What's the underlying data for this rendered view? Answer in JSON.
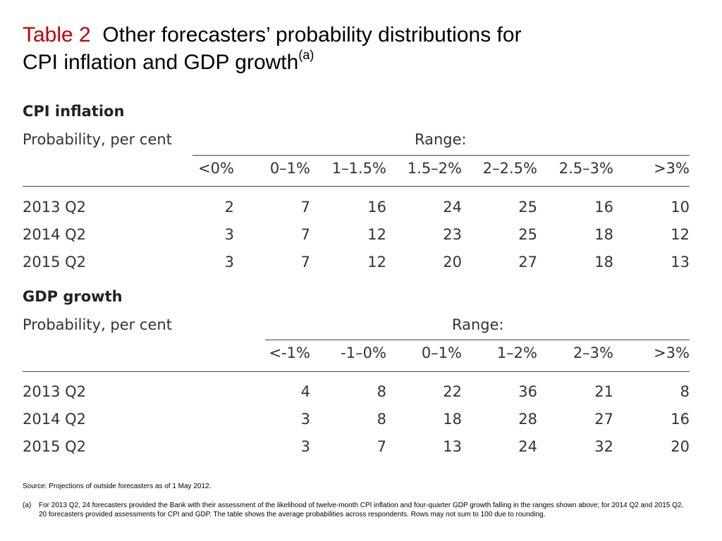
{
  "title": {
    "label": "Table 2",
    "line1": "Other forecasters’ probability distributions for",
    "line2": "CPI inflation and GDP growth",
    "superscript": "(a)"
  },
  "cpi": {
    "section": "CPI inflation",
    "subtitle": "Probability, per cent",
    "range_label": "Range:",
    "columns": [
      "<0%",
      "0–1%",
      "1–1.5%",
      "1.5–2%",
      "2–2.5%",
      "2.5–3%",
      ">3%"
    ],
    "rows": [
      {
        "label": "2013 Q2",
        "values": [
          "2",
          "7",
          "16",
          "24",
          "25",
          "16",
          "10"
        ]
      },
      {
        "label": "2014 Q2",
        "values": [
          "3",
          "7",
          "12",
          "23",
          "25",
          "18",
          "12"
        ]
      },
      {
        "label": "2015 Q2",
        "values": [
          "3",
          "7",
          "12",
          "20",
          "27",
          "18",
          "13"
        ]
      }
    ]
  },
  "gdp": {
    "section": "GDP growth",
    "subtitle": "Probability, per cent",
    "range_label": "Range:",
    "columns": [
      "<-1%",
      "-1–0%",
      "0–1%",
      "1–2%",
      "2–3%",
      ">3%"
    ],
    "rows": [
      {
        "label": "2013 Q2",
        "values": [
          "4",
          "8",
          "22",
          "36",
          "21",
          "8"
        ]
      },
      {
        "label": "2014 Q2",
        "values": [
          "3",
          "8",
          "18",
          "28",
          "27",
          "16"
        ]
      },
      {
        "label": "2015 Q2",
        "values": [
          "3",
          "7",
          "13",
          "24",
          "32",
          "20"
        ]
      }
    ]
  },
  "notes": {
    "source": "Source:  Projections of outside forecasters as of 1 May 2012.",
    "footnote_mark": "(a)",
    "footnote": "For 2013 Q2, 24 forecasters provided the Bank with their assessment of the likelihood of twelve-month CPI inflation and four-quarter GDP growth falling in the ranges shown above;  for 2014 Q2 and 2015 Q2, 20 forecasters provided assessments for CPI and GDP.  The table shows the average probabilities across respondents.  Rows may not sum to 100 due to rounding."
  },
  "colors": {
    "title_label": "#c00000",
    "text": "#333333",
    "rule": "#444444"
  }
}
